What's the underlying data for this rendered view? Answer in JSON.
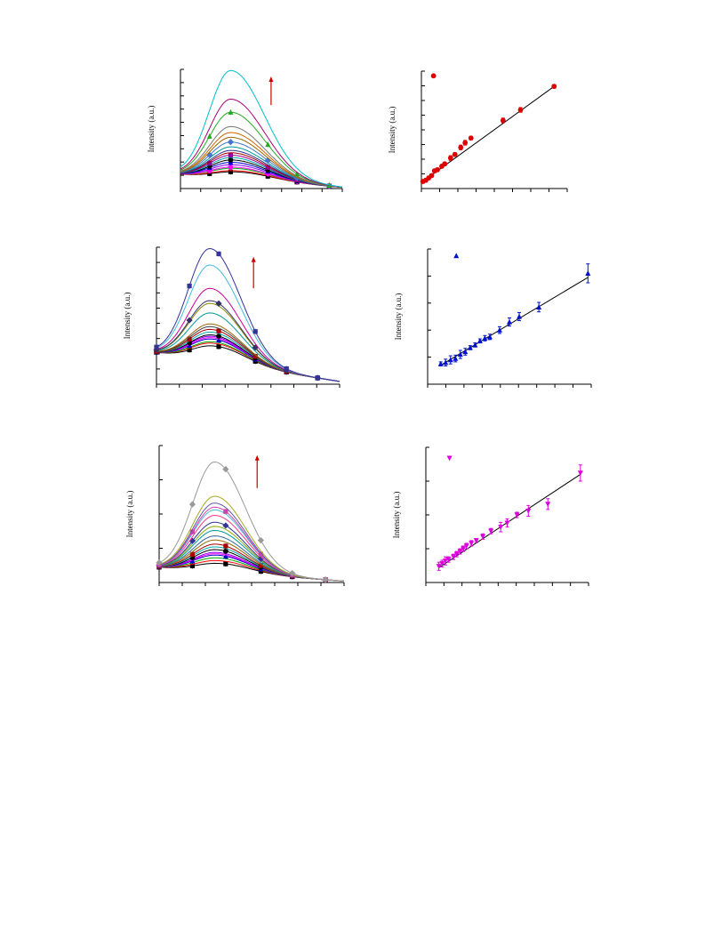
{
  "chart_data": [
    {
      "id": "spectra-1",
      "type": "line",
      "ylabel": "Intensity (a.u.)",
      "xlabel": "",
      "xlim": [
        0,
        100
      ],
      "ylim": [
        0,
        100
      ],
      "grid": false,
      "peak_x": 31,
      "width_left": 19,
      "width_right": 29,
      "base_start": 12,
      "base_end": 1,
      "arrow": {
        "x": 56,
        "y_from": 70,
        "y_to": 94,
        "color": "#cc0000"
      },
      "markers_x": [
        18,
        31,
        54,
        72,
        92
      ],
      "series": [
        {
          "peak": 14,
          "color": "#000000",
          "marker": "square"
        },
        {
          "peak": 15,
          "color": "#ff0000",
          "marker": "none"
        },
        {
          "peak": 17,
          "color": "#00aa00",
          "marker": "none"
        },
        {
          "peak": 18,
          "color": "#ff00ff",
          "marker": "diamond"
        },
        {
          "peak": 20,
          "color": "#8800ff",
          "marker": "none"
        },
        {
          "peak": 22,
          "color": "#0000cc",
          "marker": "triangle"
        },
        {
          "peak": 24,
          "color": "#000000",
          "marker": "circle"
        },
        {
          "peak": 26,
          "color": "#00aaaa",
          "marker": "none"
        },
        {
          "peak": 28,
          "color": "#990099",
          "marker": "square"
        },
        {
          "peak": 30,
          "color": "#aa0000",
          "marker": "none"
        },
        {
          "peak": 32,
          "color": "#333399",
          "marker": "none"
        },
        {
          "peak": 35,
          "color": "#009999",
          "marker": "none"
        },
        {
          "peak": 39,
          "color": "#4477cc",
          "marker": "diamond"
        },
        {
          "peak": 43,
          "color": "#996600",
          "marker": "none"
        },
        {
          "peak": 47,
          "color": "#cc6600",
          "marker": "none"
        },
        {
          "peak": 52,
          "color": "#777777",
          "marker": "none"
        },
        {
          "peak": 64,
          "color": "#22aa22",
          "marker": "triangle"
        },
        {
          "peak": 75,
          "color": "#aa0077",
          "marker": "none"
        },
        {
          "peak": 99,
          "color": "#00c0c8",
          "marker": "none"
        }
      ]
    },
    {
      "id": "linear-1",
      "type": "scatter",
      "ylabel": "Intensity (a.u.)",
      "xlabel": "",
      "xlim": [
        0,
        100
      ],
      "ylim": [
        0,
        100
      ],
      "grid": false,
      "marker": "circle",
      "color": "#dd0000",
      "legend_marker": {
        "x": 1,
        "y": 96
      },
      "fit": {
        "x0": 1,
        "y0": 6,
        "x1": 91,
        "y1": 87
      },
      "points": [
        {
          "x": 1,
          "y": 6,
          "err": 1.5
        },
        {
          "x": 3,
          "y": 7,
          "err": 1.5
        },
        {
          "x": 5,
          "y": 9,
          "err": 1.5
        },
        {
          "x": 7,
          "y": 11,
          "err": 1.5
        },
        {
          "x": 9,
          "y": 15,
          "err": 1.5
        },
        {
          "x": 11,
          "y": 16,
          "err": 1.5
        },
        {
          "x": 14,
          "y": 19,
          "err": 1.5
        },
        {
          "x": 16,
          "y": 21,
          "err": 1.5
        },
        {
          "x": 20,
          "y": 26,
          "err": 2
        },
        {
          "x": 23,
          "y": 29,
          "err": 1.5
        },
        {
          "x": 27,
          "y": 35,
          "err": 2
        },
        {
          "x": 30,
          "y": 39,
          "err": 2
        },
        {
          "x": 34,
          "y": 43,
          "err": 1.5
        },
        {
          "x": 56,
          "y": 58,
          "err": 2
        },
        {
          "x": 68,
          "y": 67,
          "err": 2
        },
        {
          "x": 91,
          "y": 87,
          "err": 1.5
        }
      ]
    },
    {
      "id": "spectra-2",
      "type": "line",
      "ylabel": "Intensity (a.u.)",
      "xlabel": "",
      "xlim": [
        0,
        100
      ],
      "ylim": [
        0,
        100
      ],
      "grid": false,
      "peak_x": 29,
      "width_left": 17,
      "width_right": 23,
      "base_start": 23,
      "base_end": 2,
      "arrow": {
        "x": 53,
        "y_from": 70,
        "y_to": 93,
        "color": "#cc0000"
      },
      "markers_x": [
        0,
        18,
        34,
        54,
        71,
        88
      ],
      "series": [
        {
          "peak": 28,
          "color": "#000000",
          "marker": "square"
        },
        {
          "peak": 30,
          "color": "#ff0000",
          "marker": "none"
        },
        {
          "peak": 31,
          "color": "#00aa00",
          "marker": "none"
        },
        {
          "peak": 33,
          "color": "#0000cc",
          "marker": "triangle"
        },
        {
          "peak": 34,
          "color": "#ff00ff",
          "marker": "none"
        },
        {
          "peak": 35,
          "color": "#8800ff",
          "marker": "none"
        },
        {
          "peak": 36,
          "color": "#000000",
          "marker": "circle"
        },
        {
          "peak": 38,
          "color": "#00aaaa",
          "marker": "none"
        },
        {
          "peak": 40,
          "color": "#aa0000",
          "marker": "square"
        },
        {
          "peak": 42,
          "color": "#444444",
          "marker": "none"
        },
        {
          "peak": 44,
          "color": "#996600",
          "marker": "none"
        },
        {
          "peak": 52,
          "color": "#009999",
          "marker": "none"
        },
        {
          "peak": 59,
          "color": "#888800",
          "marker": "none"
        },
        {
          "peak": 61,
          "color": "#333366",
          "marker": "diamond"
        },
        {
          "peak": 70,
          "color": "#cc0099",
          "marker": "none"
        },
        {
          "peak": 87,
          "color": "#44bbdd",
          "marker": "none"
        },
        {
          "peak": 99,
          "color": "#333399",
          "marker": "square"
        }
      ]
    },
    {
      "id": "linear-2",
      "type": "scatter",
      "ylabel": "Intensity (a.u.)",
      "xlabel": "",
      "xlim": [
        0,
        100
      ],
      "ylim": [
        0,
        100
      ],
      "grid": false,
      "marker": "triangle",
      "color": "#0010cc",
      "legend_marker": {
        "x": 11,
        "y": 95
      },
      "fit": {
        "x0": 8,
        "y0": 14,
        "x1": 98,
        "y1": 79
      },
      "points": [
        {
          "x": 8,
          "y": 15,
          "err": 1.5
        },
        {
          "x": 11,
          "y": 16,
          "err": 2.5
        },
        {
          "x": 14,
          "y": 18,
          "err": 3
        },
        {
          "x": 17,
          "y": 19,
          "err": 2.5
        },
        {
          "x": 20,
          "y": 22,
          "err": 3
        },
        {
          "x": 23,
          "y": 24,
          "err": 2.5
        },
        {
          "x": 26,
          "y": 27,
          "err": 1.5
        },
        {
          "x": 29,
          "y": 29,
          "err": 1.5
        },
        {
          "x": 32,
          "y": 32,
          "err": 1.5
        },
        {
          "x": 35,
          "y": 34,
          "err": 2
        },
        {
          "x": 38,
          "y": 35,
          "err": 2
        },
        {
          "x": 44,
          "y": 40,
          "err": 2.5
        },
        {
          "x": 50,
          "y": 46,
          "err": 3
        },
        {
          "x": 56,
          "y": 50,
          "err": 3
        },
        {
          "x": 68,
          "y": 57,
          "err": 3.5
        },
        {
          "x": 98,
          "y": 82,
          "err": 7
        }
      ]
    },
    {
      "id": "spectra-3",
      "type": "line",
      "ylabel": "Intensity (a.u.)",
      "xlabel": "",
      "xlim": [
        0,
        100
      ],
      "ylim": [
        0,
        100
      ],
      "grid": false,
      "peak_x": 30,
      "width_left": 17,
      "width_right": 23,
      "base_start": 11,
      "base_end": 1,
      "arrow": {
        "x": 53,
        "y_from": 69,
        "y_to": 93,
        "color": "#cc0000"
      },
      "markers_x": [
        0,
        18,
        36,
        55,
        72,
        90
      ],
      "series": [
        {
          "peak": 14,
          "color": "#000000",
          "marker": "square"
        },
        {
          "peak": 16,
          "color": "#ff0000",
          "marker": "none"
        },
        {
          "peak": 18,
          "color": "#00aa00",
          "marker": "none"
        },
        {
          "peak": 20,
          "color": "#0000cc",
          "marker": "triangle"
        },
        {
          "peak": 21,
          "color": "#ff00ff",
          "marker": "none"
        },
        {
          "peak": 22,
          "color": "#8800ff",
          "marker": "none"
        },
        {
          "peak": 24,
          "color": "#000000",
          "marker": "circle"
        },
        {
          "peak": 26,
          "color": "#00aaaa",
          "marker": "none"
        },
        {
          "peak": 28,
          "color": "#aa0000",
          "marker": "square"
        },
        {
          "peak": 31,
          "color": "#996600",
          "marker": "none"
        },
        {
          "peak": 34,
          "color": "#336699",
          "marker": "none"
        },
        {
          "peak": 38,
          "color": "#009999",
          "marker": "none"
        },
        {
          "peak": 41,
          "color": "#88aa00",
          "marker": "none"
        },
        {
          "peak": 44,
          "color": "#333399",
          "marker": "diamond"
        },
        {
          "peak": 49,
          "color": "#ff3388",
          "marker": "none"
        },
        {
          "peak": 53,
          "color": "#44bbdd",
          "marker": "none"
        },
        {
          "peak": 55,
          "color": "#cc44aa",
          "marker": "square"
        },
        {
          "peak": 58,
          "color": "#6655aa",
          "marker": "none"
        },
        {
          "peak": 63,
          "color": "#aaaa22",
          "marker": "none"
        },
        {
          "peak": 88,
          "color": "#999999",
          "marker": "diamond"
        }
      ]
    },
    {
      "id": "linear-3",
      "type": "scatter",
      "ylabel": "Intensity (a.u.)",
      "xlabel": "",
      "xlim": [
        0,
        100
      ],
      "ylim": [
        0,
        100
      ],
      "grid": false,
      "marker": "triangle-down",
      "color": "#dd00dd",
      "legend_marker": {
        "x": 8,
        "y": 92
      },
      "fit": {
        "x0": 8,
        "y0": 11,
        "x1": 95,
        "y1": 80
      },
      "points": [
        {
          "x": 8,
          "y": 12,
          "err": 3
        },
        {
          "x": 10,
          "y": 14,
          "err": 2.5
        },
        {
          "x": 12,
          "y": 16,
          "err": 3
        },
        {
          "x": 14,
          "y": 17,
          "err": 2
        },
        {
          "x": 17,
          "y": 19,
          "err": 2
        },
        {
          "x": 19,
          "y": 21,
          "err": 2
        },
        {
          "x": 21,
          "y": 23,
          "err": 2
        },
        {
          "x": 23,
          "y": 25,
          "err": 2
        },
        {
          "x": 25,
          "y": 27,
          "err": 2
        },
        {
          "x": 28,
          "y": 29,
          "err": 2
        },
        {
          "x": 31,
          "y": 31,
          "err": 1.5
        },
        {
          "x": 35,
          "y": 34,
          "err": 2
        },
        {
          "x": 40,
          "y": 38,
          "err": 2
        },
        {
          "x": 46,
          "y": 41,
          "err": 3.5
        },
        {
          "x": 50,
          "y": 44,
          "err": 3
        },
        {
          "x": 56,
          "y": 50,
          "err": 2
        },
        {
          "x": 63,
          "y": 53,
          "err": 4
        },
        {
          "x": 75,
          "y": 58,
          "err": 4
        },
        {
          "x": 95,
          "y": 81,
          "err": 6
        }
      ]
    }
  ]
}
